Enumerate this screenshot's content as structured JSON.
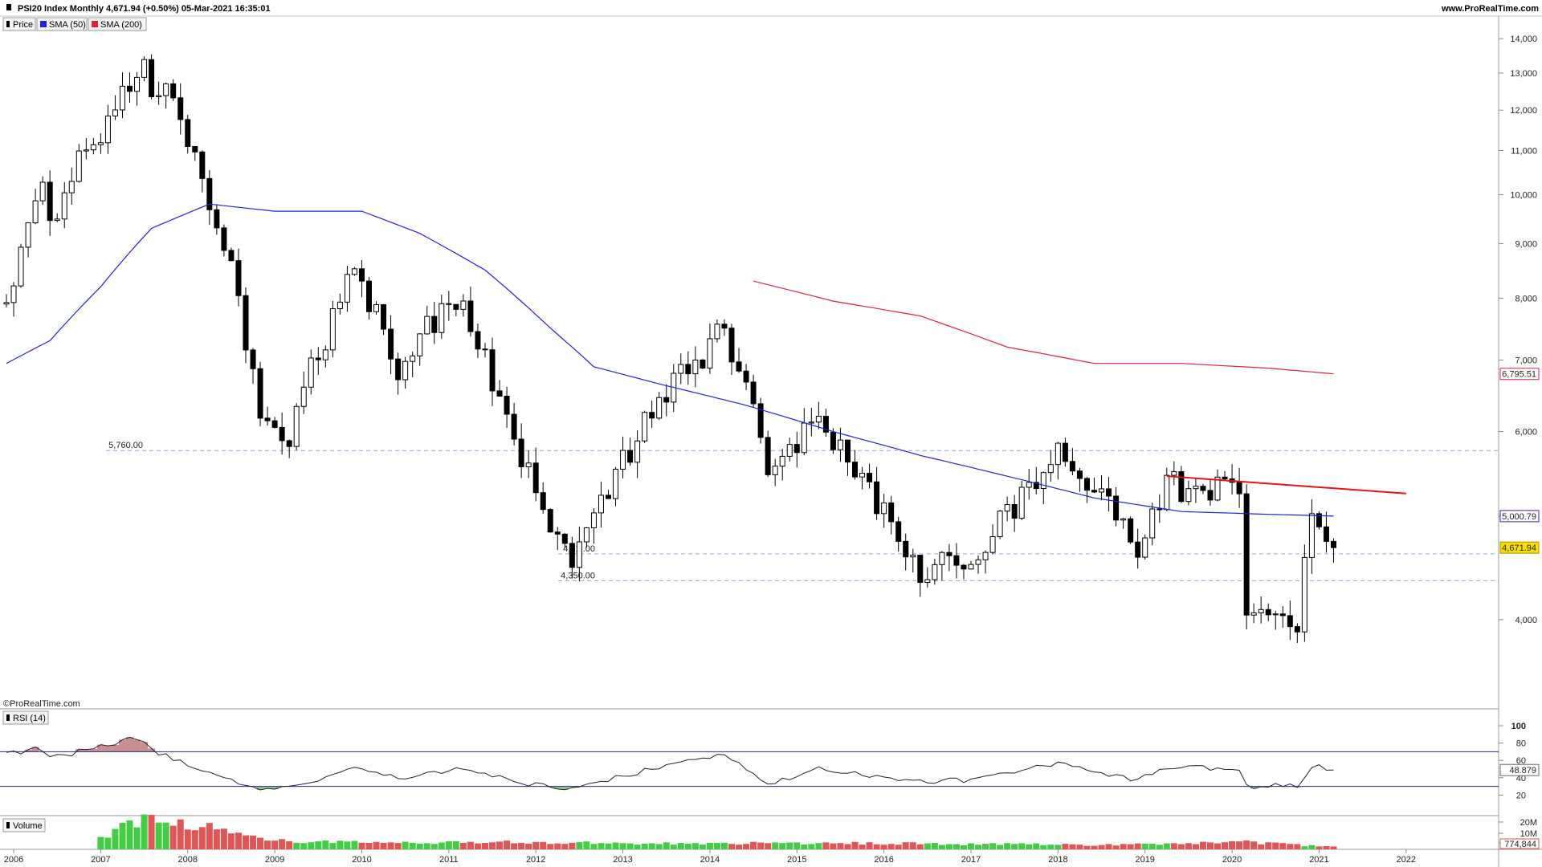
{
  "header": {
    "title": "PSI20 Index Monthly 4,671.94 (+0.50%) 05-Mar-2021 16:35:01",
    "site": "www.ProRealTime.com",
    "watermark": "©ProRealTime.com"
  },
  "legend": {
    "price": "Price",
    "sma50": "SMA (50)",
    "sma200": "SMA (200)",
    "rsi": "RSI (14)",
    "volume": "Volume"
  },
  "colors": {
    "sma50": "#2020e0",
    "sma200": "#e0203c",
    "trendline": "#ee1111",
    "volume_up": "#44cc44",
    "volume_down": "#e05555",
    "last_price_bg": "#f5e000",
    "dashed": "#8aa8d8"
  },
  "chart_data": [
    {
      "type": "candlestick",
      "ylim": [
        3300,
        14700
      ],
      "y_ticks": [
        "4,000",
        "5,000",
        "6,000",
        "7,000",
        "8,000",
        "9,000",
        "10,000",
        "11,000",
        "12,000",
        "13,000",
        "14,000"
      ],
      "x_ticks": [
        "2006",
        "2007",
        "2008",
        "2009",
        "2010",
        "2011",
        "2012",
        "2013",
        "2014",
        "2015",
        "2016",
        "2017",
        "2018",
        "2019",
        "2020",
        "2021",
        "2022"
      ],
      "close_keypoints": [
        {
          "date": "2005-12",
          "close": 7900
        },
        {
          "date": "2006-05",
          "close": 10200
        },
        {
          "date": "2006-06",
          "close": 9400
        },
        {
          "date": "2007-07",
          "close": 13400
        },
        {
          "date": "2007-08",
          "close": 12300
        },
        {
          "date": "2007-10",
          "close": 13100
        },
        {
          "date": "2008-02",
          "close": 10800
        },
        {
          "date": "2008-07",
          "close": 8400
        },
        {
          "date": "2008-11",
          "close": 6200
        },
        {
          "date": "2009-03",
          "close": 6000
        },
        {
          "date": "2009-12",
          "close": 8500
        },
        {
          "date": "2010-06",
          "close": 6950
        },
        {
          "date": "2011-02",
          "close": 8000
        },
        {
          "date": "2011-12",
          "close": 5500
        },
        {
          "date": "2012-06",
          "close": 4500
        },
        {
          "date": "2013-05",
          "close": 6200
        },
        {
          "date": "2014-03",
          "close": 7500
        },
        {
          "date": "2014-09",
          "close": 5500
        },
        {
          "date": "2015-04",
          "close": 6100
        },
        {
          "date": "2016-06",
          "close": 4450
        },
        {
          "date": "2017-01",
          "close": 4550
        },
        {
          "date": "2018-01",
          "close": 5700
        },
        {
          "date": "2018-12",
          "close": 4700
        },
        {
          "date": "2019-04",
          "close": 5350
        },
        {
          "date": "2020-02",
          "close": 5250
        },
        {
          "date": "2020-03",
          "close": 4050
        },
        {
          "date": "2020-10",
          "close": 3950
        },
        {
          "date": "2020-12",
          "close": 4900
        },
        {
          "date": "2021-03",
          "close": 4671.94
        }
      ],
      "series": [
        {
          "name": "SMA (50)",
          "last_value": "5,000.79",
          "keypoints": [
            {
              "date": "2005-12",
              "value": 6950
            },
            {
              "date": "2006-06",
              "value": 7300
            },
            {
              "date": "2007-01",
              "value": 8200
            },
            {
              "date": "2007-08",
              "value": 9300
            },
            {
              "date": "2008-04",
              "value": 9800
            },
            {
              "date": "2009-01",
              "value": 9650
            },
            {
              "date": "2010-01",
              "value": 9650
            },
            {
              "date": "2010-09",
              "value": 9200
            },
            {
              "date": "2011-06",
              "value": 8500
            },
            {
              "date": "2012-03",
              "value": 7500
            },
            {
              "date": "2012-09",
              "value": 6900
            },
            {
              "date": "2013-06",
              "value": 6650
            },
            {
              "date": "2014-06",
              "value": 6350
            },
            {
              "date": "2015-06",
              "value": 6000
            },
            {
              "date": "2016-06",
              "value": 5700
            },
            {
              "date": "2017-06",
              "value": 5450
            },
            {
              "date": "2018-06",
              "value": 5200
            },
            {
              "date": "2019-06",
              "value": 5050
            },
            {
              "date": "2020-06",
              "value": 5020
            },
            {
              "date": "2021-03",
              "value": 5000.79
            }
          ]
        },
        {
          "name": "SMA (200)",
          "last_value": "6,795.51",
          "keypoints": [
            {
              "date": "2014-07",
              "value": 8300
            },
            {
              "date": "2015-06",
              "value": 7950
            },
            {
              "date": "2016-06",
              "value": 7700
            },
            {
              "date": "2017-06",
              "value": 7200
            },
            {
              "date": "2018-06",
              "value": 6950
            },
            {
              "date": "2019-06",
              "value": 6950
            },
            {
              "date": "2020-06",
              "value": 6880
            },
            {
              "date": "2021-03",
              "value": 6795.51
            }
          ]
        }
      ],
      "trendline": [
        {
          "date": "2019-04",
          "value": 5450
        },
        {
          "date": "2022-01",
          "value": 5250
        }
      ],
      "horizontal_levels": [
        {
          "value": 5760,
          "label": "5,760.00"
        },
        {
          "value": 4610,
          "label": "4,61 .00"
        },
        {
          "value": 4350,
          "label": "4,350.00"
        }
      ],
      "last_price_label": "4,671.94"
    },
    {
      "type": "line",
      "name": "RSI (14)",
      "ylim": [
        0,
        100
      ],
      "y_ticks": [
        "100",
        "80",
        "60",
        "40",
        "20"
      ],
      "levels": [
        70,
        30
      ],
      "last_value": "48.879",
      "keypoints": [
        {
          "date": "2005-12",
          "value": 67
        },
        {
          "date": "2006-04",
          "value": 73
        },
        {
          "date": "2006-07",
          "value": 64
        },
        {
          "date": "2007-06",
          "value": 86
        },
        {
          "date": "2007-09",
          "value": 68
        },
        {
          "date": "2008-02",
          "value": 52
        },
        {
          "date": "2008-11",
          "value": 26
        },
        {
          "date": "2009-03",
          "value": 28
        },
        {
          "date": "2009-12",
          "value": 52
        },
        {
          "date": "2010-06",
          "value": 40
        },
        {
          "date": "2011-02",
          "value": 50
        },
        {
          "date": "2011-12",
          "value": 33
        },
        {
          "date": "2012-06",
          "value": 28
        },
        {
          "date": "2013-05",
          "value": 50
        },
        {
          "date": "2014-03",
          "value": 68
        },
        {
          "date": "2014-09",
          "value": 33
        },
        {
          "date": "2015-04",
          "value": 50
        },
        {
          "date": "2016-06",
          "value": 36
        },
        {
          "date": "2017-01",
          "value": 37
        },
        {
          "date": "2018-01",
          "value": 57
        },
        {
          "date": "2018-12",
          "value": 37
        },
        {
          "date": "2019-04",
          "value": 52
        },
        {
          "date": "2020-02",
          "value": 50
        },
        {
          "date": "2020-03",
          "value": 30
        },
        {
          "date": "2020-10",
          "value": 31
        },
        {
          "date": "2020-12",
          "value": 54
        },
        {
          "date": "2021-03",
          "value": 48.879
        }
      ]
    },
    {
      "type": "bar",
      "name": "Volume",
      "y_ticks": [
        "20M",
        "10M",
        "5,000k"
      ],
      "last_value": "774,844",
      "keypoints": [
        {
          "date": "2007-01",
          "value": 0.35
        },
        {
          "date": "2007-06",
          "value": 1.0
        },
        {
          "date": "2008-02",
          "value": 0.85
        },
        {
          "date": "2008-09",
          "value": 0.45
        },
        {
          "date": "2009-06",
          "value": 0.25
        },
        {
          "date": "2011-06",
          "value": 0.25
        },
        {
          "date": "2013-06",
          "value": 0.2
        },
        {
          "date": "2015-06",
          "value": 0.22
        },
        {
          "date": "2018-06",
          "value": 0.15
        },
        {
          "date": "2020-03",
          "value": 0.25
        },
        {
          "date": "2021-03",
          "value": 0.08
        }
      ]
    }
  ]
}
